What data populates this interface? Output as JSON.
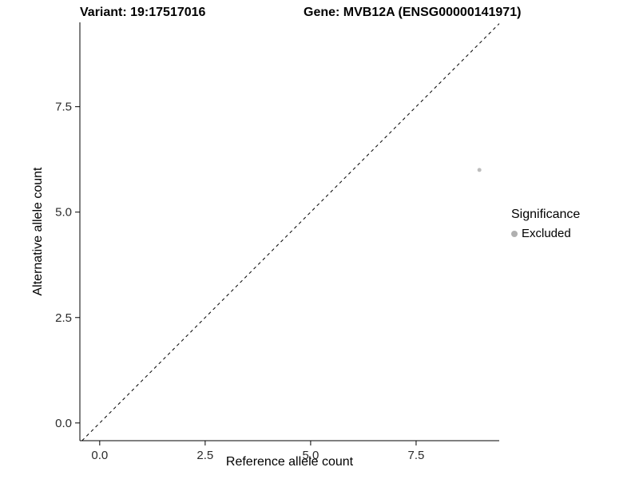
{
  "chart_data": {
    "type": "scatter",
    "title_left": "Variant: 19:17517016",
    "title_right": "Gene: MVB12A (ENSG00000141971)",
    "xlabel": "Reference allele count",
    "ylabel": "Alternative allele count",
    "xlim": [
      -0.47,
      9.47
    ],
    "ylim": [
      -0.42,
      9.5
    ],
    "x_ticks": {
      "values": [
        0,
        2.5,
        5,
        7.5
      ],
      "labels": [
        "0.0",
        "2.5",
        "5.0",
        "7.5"
      ]
    },
    "y_ticks": {
      "values": [
        0,
        2.5,
        5,
        7.5
      ],
      "labels": [
        "0.0",
        "2.5",
        "5.0",
        "7.5"
      ]
    },
    "grid": false,
    "identity_line": {
      "slope": 1,
      "intercept": 0,
      "style": "dashed",
      "color": "#000000"
    },
    "points": [
      {
        "x": 9,
        "y": 6,
        "series": "Excluded"
      }
    ],
    "point_color": "#bdbdbd",
    "point_radius": 2.5,
    "axis_color": "#000000",
    "legend": {
      "title": "Significance",
      "position": "right",
      "items": [
        {
          "label": "Excluded",
          "color": "#b0b0b0"
        }
      ]
    }
  }
}
